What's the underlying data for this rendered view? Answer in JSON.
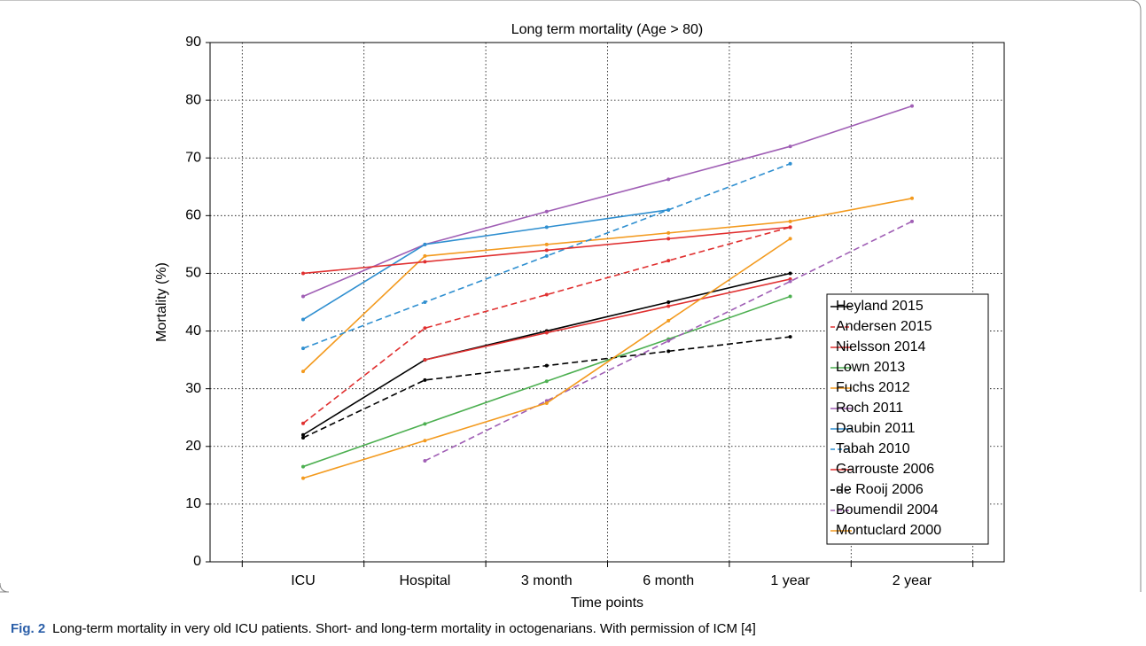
{
  "chart_data": {
    "type": "line",
    "title": "Long term mortality (Age > 80)",
    "x_label": "Time points",
    "y_label": "Mortality (%)",
    "categories": [
      "ICU",
      "Hospital",
      "3 month",
      "6 month",
      "1 year",
      "2 year"
    ],
    "ylim": [
      0,
      90
    ],
    "yticks": [
      0,
      10,
      20,
      30,
      40,
      50,
      60,
      70,
      80,
      90
    ],
    "grid": true,
    "legend": "lower right",
    "series": [
      {
        "name": "Heyland 2015",
        "color": "#000000",
        "dash": "solid",
        "values": [
          22,
          35,
          40,
          45,
          50,
          null
        ]
      },
      {
        "name": "Andersen 2015",
        "color": "#e03030",
        "dash": "dashed",
        "values": [
          24,
          40.5,
          46.3,
          52.2,
          58,
          null
        ]
      },
      {
        "name": "Nielsson 2014",
        "color": "#e03030",
        "dash": "solid",
        "values": [
          null,
          35,
          39.7,
          44.3,
          49,
          null
        ]
      },
      {
        "name": "Lown 2013",
        "color": "#4caf50",
        "dash": "solid",
        "values": [
          16.5,
          23.9,
          31.3,
          38.6,
          46,
          null
        ]
      },
      {
        "name": "Fuchs 2012",
        "color": "#f39a1e",
        "dash": "solid",
        "values": [
          33,
          53,
          55,
          57,
          59,
          63
        ]
      },
      {
        "name": "Roch 2011",
        "color": "#a05fb5",
        "dash": "solid",
        "values": [
          46,
          55,
          60.7,
          66.3,
          72,
          79
        ]
      },
      {
        "name": "Daubin 2011",
        "color": "#2f8fd0",
        "dash": "solid",
        "values": [
          42,
          55,
          58,
          61,
          null,
          null
        ]
      },
      {
        "name": "Tabah 2010",
        "color": "#2f8fd0",
        "dash": "dashed",
        "values": [
          37,
          45,
          53,
          61,
          69,
          null
        ]
      },
      {
        "name": "Garrouste 2006",
        "color": "#e03030",
        "dash": "solid",
        "values": [
          50,
          52,
          54,
          56,
          58,
          null
        ]
      },
      {
        "name": "de Rooij 2006",
        "color": "#000000",
        "dash": "dashed",
        "values": [
          21.5,
          31.5,
          34,
          36.5,
          39,
          null
        ]
      },
      {
        "name": "Boumendil 2004",
        "color": "#a05fb5",
        "dash": "dashed",
        "values": [
          null,
          17.5,
          27.9,
          38.3,
          48.6,
          59
        ]
      },
      {
        "name": "Montuclard 2000",
        "color": "#f39a1e",
        "dash": "solid",
        "values": [
          14.5,
          21,
          27.5,
          41.8,
          56,
          null
        ]
      }
    ]
  },
  "caption": {
    "label": "Fig. 2",
    "text": "Long-term mortality in very old ICU patients. Short- and long-term mortality in octogenarians. With permission of ICM [4]"
  }
}
